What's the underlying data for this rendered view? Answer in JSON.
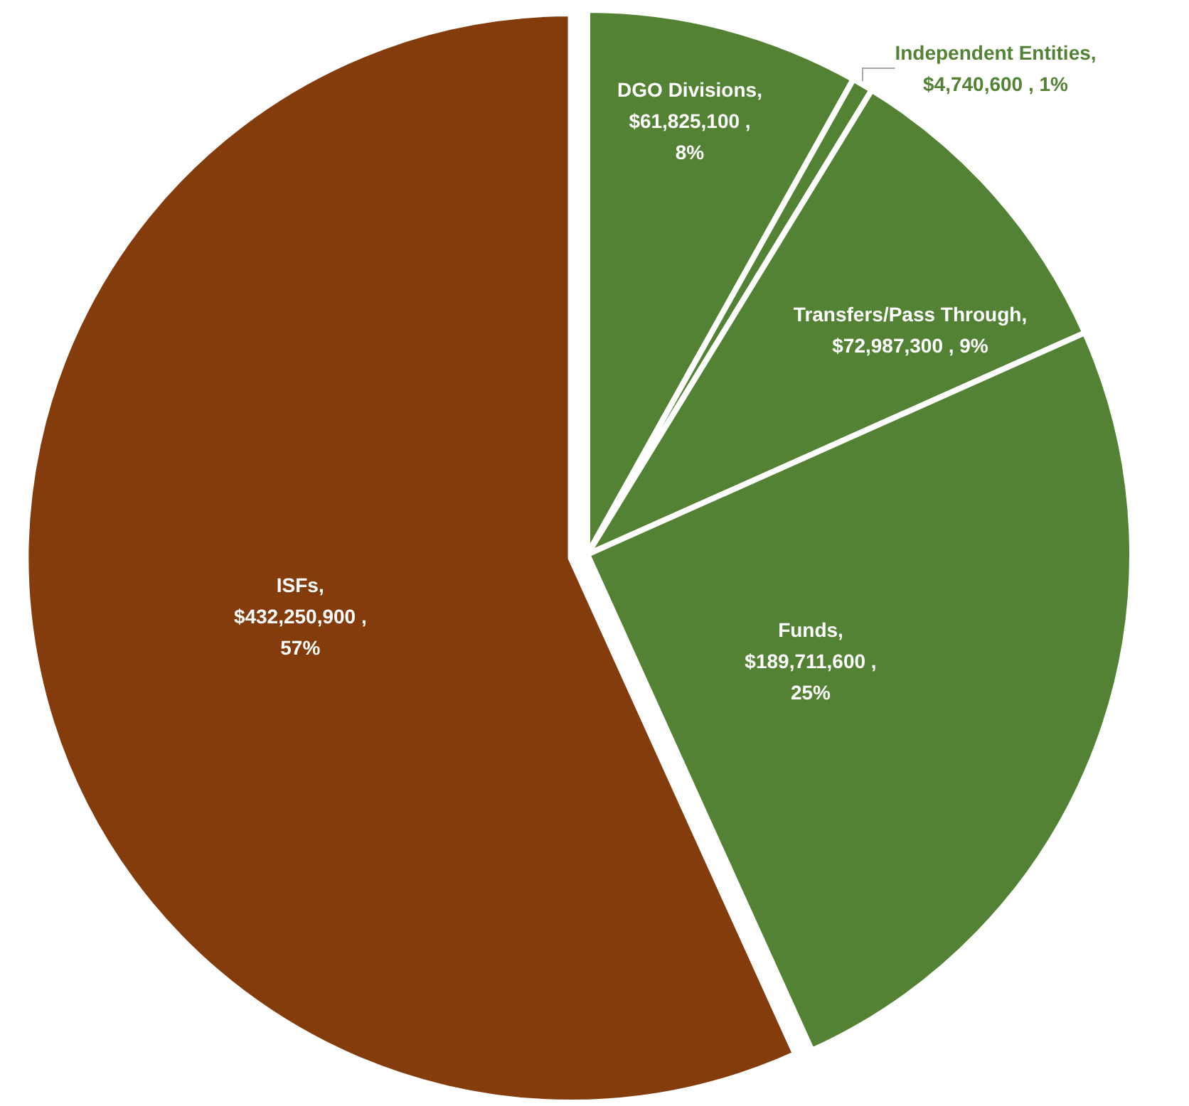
{
  "chart_data": {
    "type": "pie",
    "categories": [
      "DGO Divisions",
      "Independent Entities",
      "Transfers/Pass Through",
      "Funds",
      "ISFs"
    ],
    "values": [
      61825100,
      4740600,
      72987300,
      189711600,
      432250900
    ],
    "value_labels": [
      ", $61,825,100 , 8%",
      ", $4,740,600 , 1%",
      ", $72,987,300 , 9%",
      ", $189,711,600 , 25%",
      ", $432,250,900 , 57%"
    ],
    "colors": [
      "#548235",
      "#548235",
      "#548235",
      "#548235",
      "#843c0c"
    ],
    "legend": false
  }
}
